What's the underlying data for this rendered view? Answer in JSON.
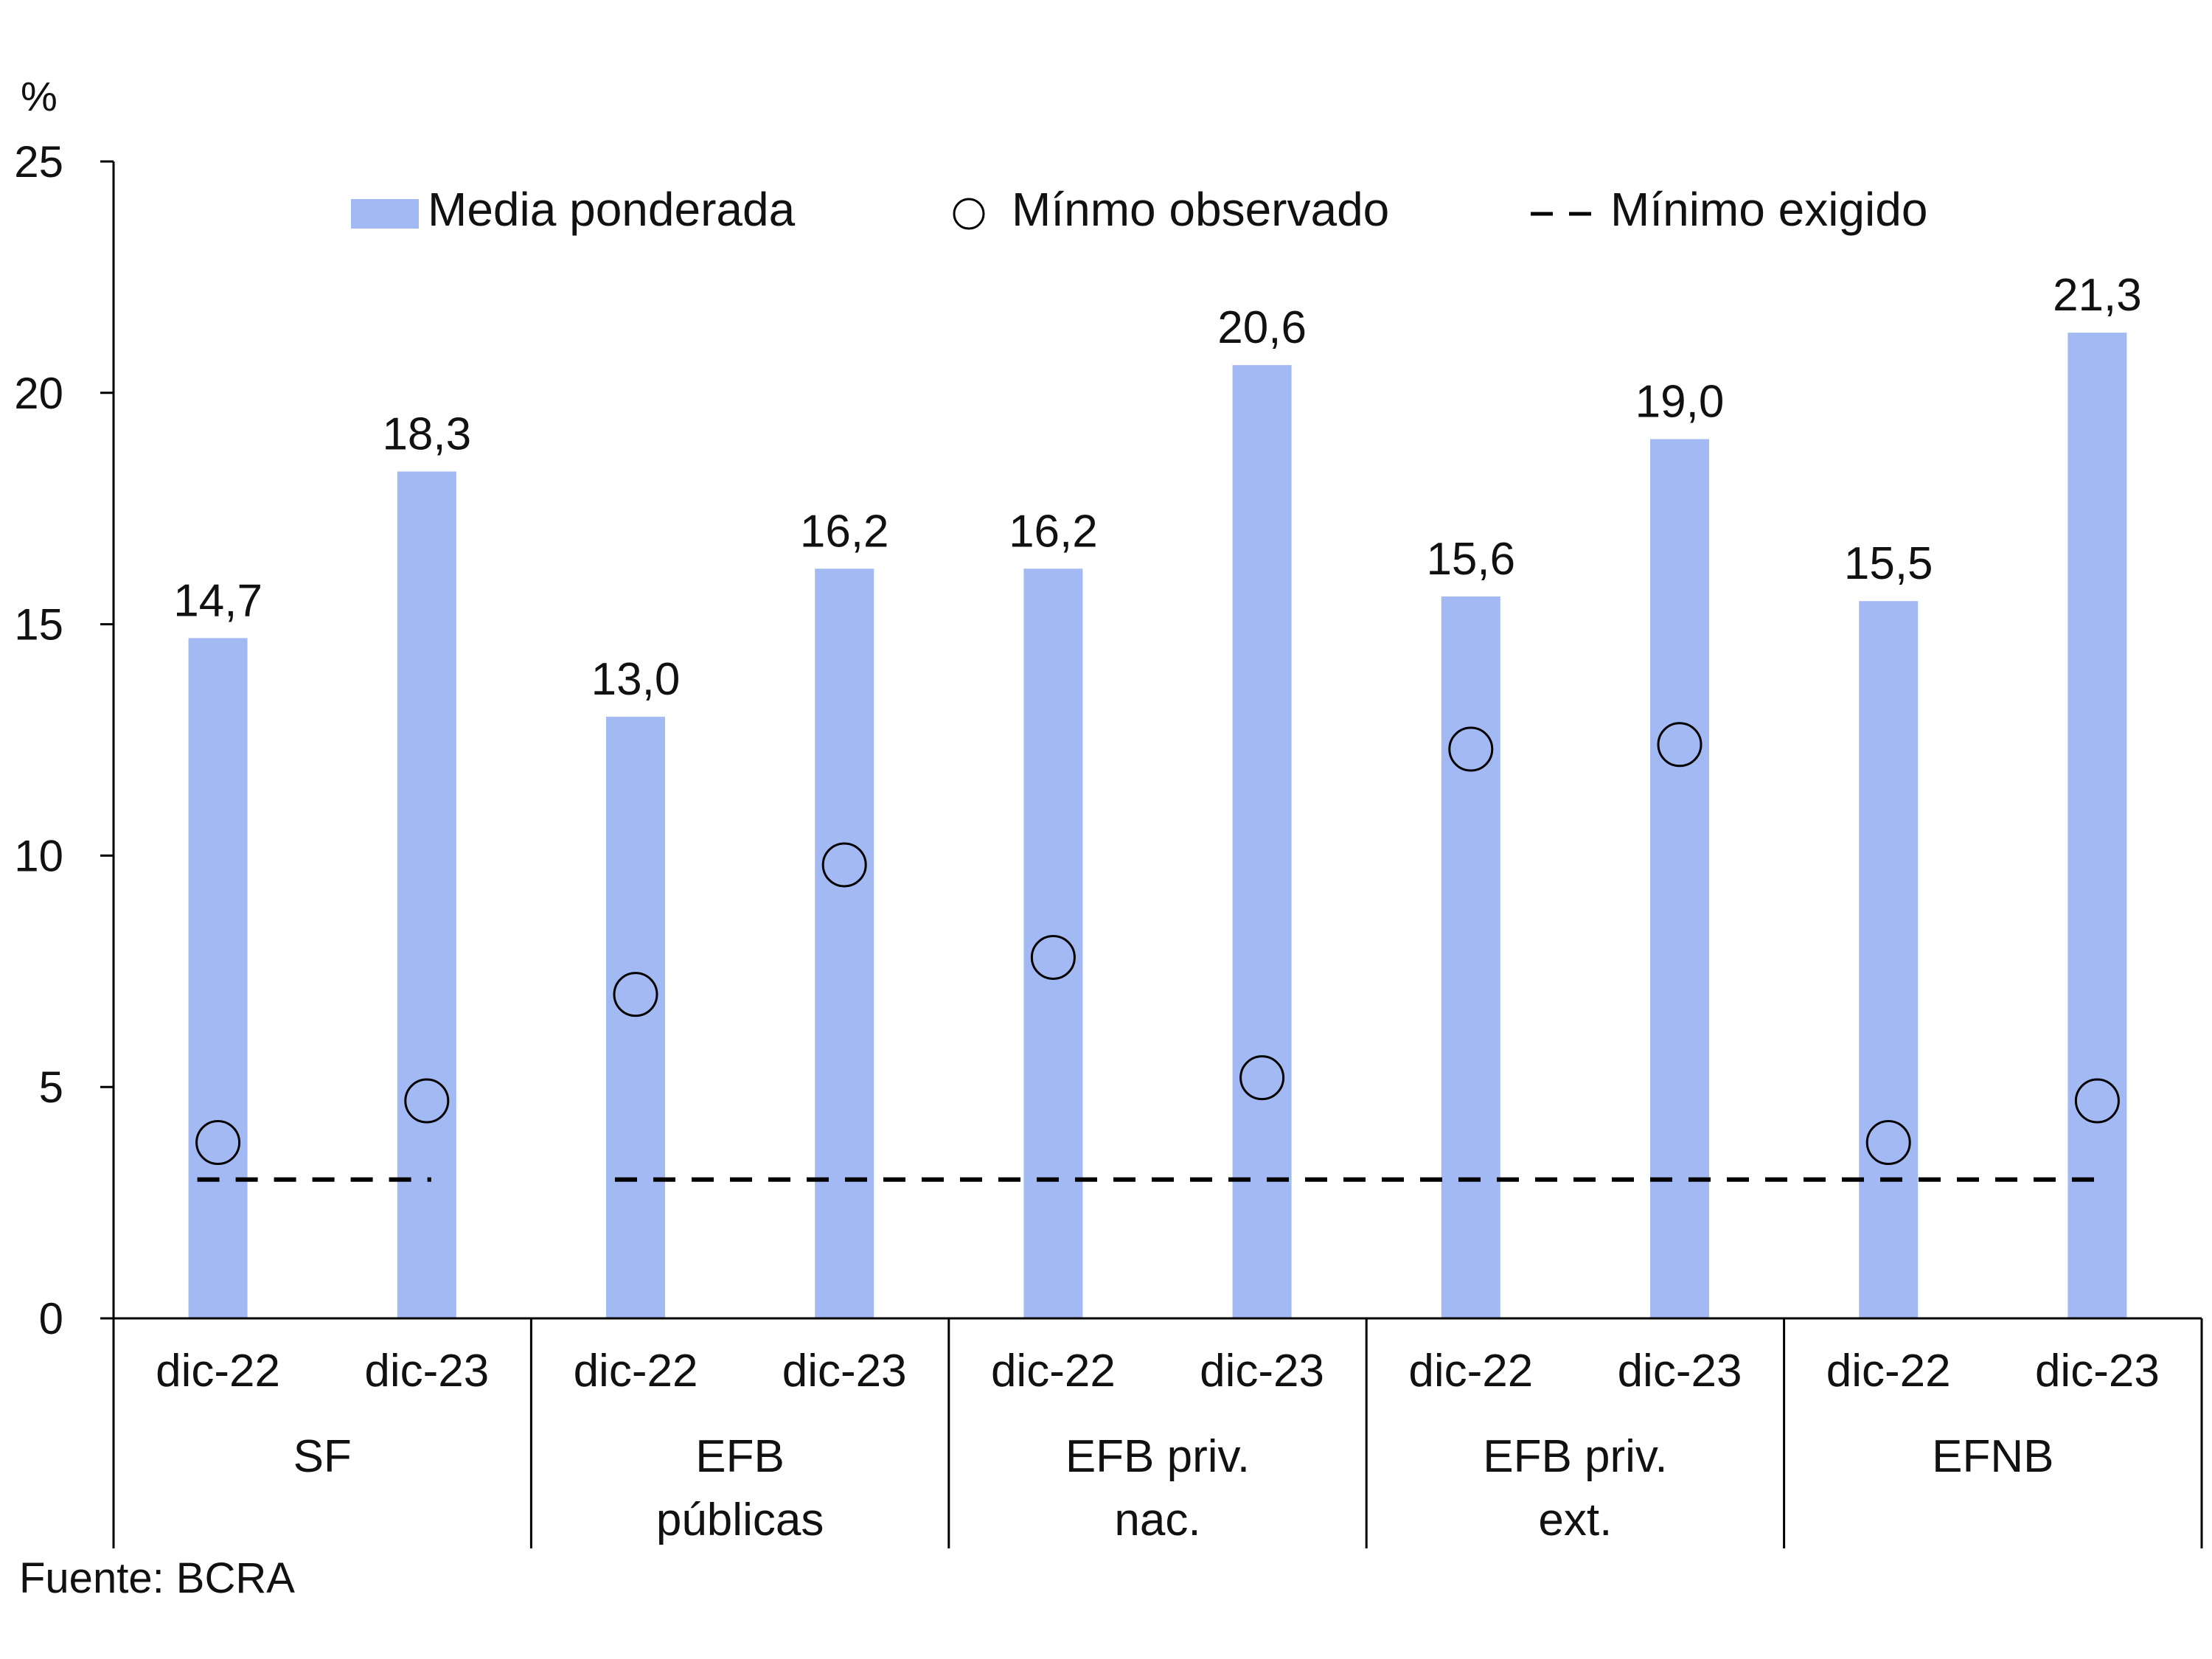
{
  "chart_data": {
    "type": "bar",
    "yunit": "%",
    "ylim": [
      0,
      25
    ],
    "yticks": [
      0,
      5,
      10,
      15,
      20,
      25
    ],
    "groups": [
      {
        "label": [
          "SF"
        ],
        "periods": [
          "dic-22",
          "dic-23"
        ],
        "media": [
          14.7,
          18.3
        ],
        "minimo_observado": [
          3.8,
          4.7
        ],
        "value_labels": [
          "14,7",
          "18,3"
        ]
      },
      {
        "label": [
          "EFB",
          "públicas"
        ],
        "periods": [
          "dic-22",
          "dic-23"
        ],
        "media": [
          13.0,
          16.2
        ],
        "minimo_observado": [
          7.0,
          9.8
        ],
        "value_labels": [
          "13,0",
          "16,2"
        ]
      },
      {
        "label": [
          "EFB priv.",
          "nac."
        ],
        "periods": [
          "dic-22",
          "dic-23"
        ],
        "media": [
          16.2,
          20.6
        ],
        "minimo_observado": [
          7.8,
          5.2
        ],
        "value_labels": [
          "16,2",
          "20,6"
        ]
      },
      {
        "label": [
          "EFB priv.",
          "ext."
        ],
        "periods": [
          "dic-22",
          "dic-23"
        ],
        "media": [
          15.6,
          19.0
        ],
        "minimo_observado": [
          12.3,
          12.4
        ],
        "value_labels": [
          "15,6",
          "19,0"
        ]
      },
      {
        "label": [
          "EFNB"
        ],
        "periods": [
          "dic-22",
          "dic-23"
        ],
        "media": [
          15.5,
          21.3
        ],
        "minimo_observado": [
          3.8,
          4.7
        ],
        "value_labels": [
          "15,5",
          "21,3"
        ]
      }
    ],
    "minimo_exigido": 3.0,
    "minimo_exigido_segments": [
      [
        0,
        0
      ],
      [
        1,
        4
      ]
    ],
    "legend": {
      "placement": "top",
      "items": [
        {
          "key": "media",
          "label": "Media ponderada"
        },
        {
          "key": "observado",
          "label": "Mínmo observado"
        },
        {
          "key": "exigido",
          "label": "Mínimo exigido"
        }
      ]
    },
    "colors": {
      "bar": "#a3b9f3",
      "axis": "#000000",
      "dashed": "#000000"
    }
  },
  "source": "Fuente: BCRA"
}
